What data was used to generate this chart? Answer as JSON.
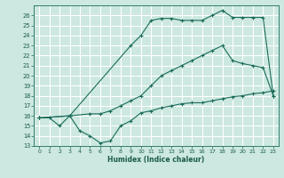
{
  "xlabel": "Humidex (Indice chaleur)",
  "bg_color": "#cce8e0",
  "grid_color": "#ffffff",
  "line_color": "#1a6b5a",
  "ylim": [
    13,
    27
  ],
  "xlim": [
    -0.5,
    23.5
  ],
  "yticks": [
    13,
    14,
    15,
    16,
    17,
    18,
    19,
    20,
    21,
    22,
    23,
    24,
    25,
    26
  ],
  "xticks": [
    0,
    1,
    2,
    3,
    4,
    5,
    6,
    7,
    8,
    9,
    10,
    11,
    12,
    13,
    14,
    15,
    16,
    17,
    18,
    19,
    20,
    21,
    22,
    23
  ],
  "curve1_x": [
    0,
    1,
    2,
    3,
    4,
    5,
    6,
    7,
    8,
    9,
    10,
    11,
    12,
    13,
    14,
    15,
    16,
    17,
    18,
    19,
    20,
    21,
    22,
    23
  ],
  "curve1_y": [
    15.8,
    15.8,
    15.0,
    16.0,
    14.5,
    14.0,
    13.3,
    13.5,
    15.0,
    15.5,
    16.3,
    16.5,
    16.8,
    17.0,
    17.2,
    17.3,
    17.3,
    17.5,
    17.7,
    17.9,
    18.0,
    18.2,
    18.3,
    18.5
  ],
  "curve2_x": [
    0,
    3,
    5,
    6,
    7,
    8,
    9,
    10,
    11,
    12,
    13,
    14,
    15,
    16,
    17,
    18,
    19,
    20,
    21,
    22,
    23
  ],
  "curve2_y": [
    15.8,
    16.0,
    16.2,
    16.2,
    16.5,
    17.0,
    17.5,
    18.0,
    19.0,
    20.0,
    20.5,
    21.0,
    21.5,
    22.0,
    22.5,
    23.0,
    21.5,
    21.2,
    21.0,
    20.8,
    18.0
  ],
  "curve3_x": [
    0,
    3,
    9,
    10,
    11,
    12,
    13,
    14,
    15,
    16,
    17,
    18,
    19,
    20,
    21,
    22,
    23
  ],
  "curve3_y": [
    15.8,
    16.0,
    23.0,
    24.0,
    25.5,
    25.7,
    25.7,
    25.5,
    25.5,
    25.5,
    26.0,
    26.5,
    25.8,
    25.8,
    25.8,
    25.8,
    18.0
  ]
}
